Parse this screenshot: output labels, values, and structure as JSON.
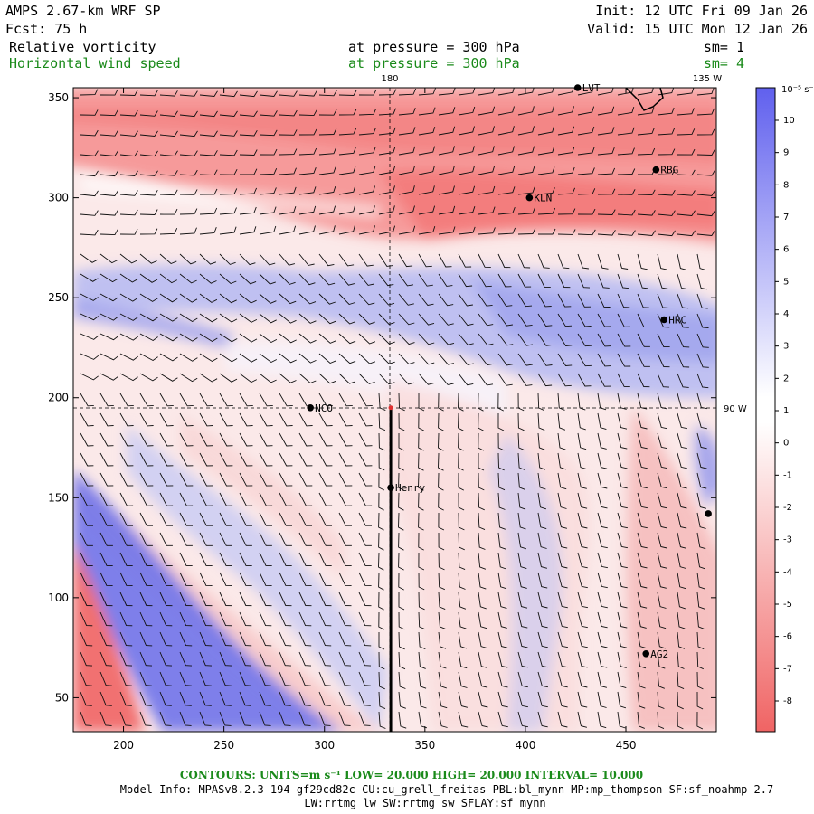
{
  "header": {
    "model": "AMPS 2.67-km WRF SP",
    "fcst": "Fcst:   75 h",
    "init": "Init: 12 UTC Fri 09 Jan 26",
    "valid": "Valid: 15 UTC Mon 12 Jan 26",
    "field1": "Relative vorticity",
    "field1_level": "at pressure =  300 hPa",
    "field1_sm": "sm= 1",
    "field2": "Horizontal wind speed",
    "field2_level": "at pressure =  300 hPa",
    "field2_sm": "sm= 4"
  },
  "map_labels": {
    "lon_180": "180",
    "lon_135w": "135 W",
    "lon_90w": "90 W"
  },
  "colorbar": {
    "unit": "10⁻⁵ s⁻¹",
    "ticks": [
      "10",
      "9",
      "8",
      "7",
      "6",
      "5",
      "4",
      "3",
      "2",
      "1",
      "0",
      "-1",
      "-2",
      "-3",
      "-4",
      "-5",
      "-6",
      "-7",
      "-8"
    ],
    "colors": {
      "max_blue": "#6e6ef0",
      "mid_white": "#ffffff",
      "min_red": "#f07070"
    }
  },
  "stations": [
    {
      "name": "LVT",
      "x": 426,
      "y": 355
    },
    {
      "name": "RBG",
      "x": 465,
      "y": 314
    },
    {
      "name": "KLN",
      "x": 402,
      "y": 300
    },
    {
      "name": "HRC",
      "x": 469,
      "y": 239
    },
    {
      "name": "NCO",
      "x": 293,
      "y": 195
    },
    {
      "name": "Henry",
      "x": 333,
      "y": 155
    },
    {
      "name": "AG2",
      "x": 460,
      "y": 72
    },
    {
      "name": "",
      "x": 491,
      "y": 142
    }
  ],
  "footer": {
    "contours": "CONTOURS:  UNITS=m s⁻¹  LOW=  20.000      HIGH=  20.000      INTERVAL=   10.000",
    "model_info": "Model Info: MPASv8.2.3-194-gf29cd82c CU:cu_grell_freitas PBL:bl_mynn MP:mp_thompson SF:sf_noahmp 2.7",
    "model_info2": "LW:rrtmg_lw SW:rrtmg_sw SFLAY:sf_mynn"
  },
  "chart_data": {
    "type": "heatmap",
    "title": "Relative vorticity at pressure = 300 hPa; Horizontal wind speed at pressure = 300 hPa",
    "xlim": [
      175,
      495
    ],
    "ylim": [
      33,
      355
    ],
    "xticks": [
      200,
      250,
      300,
      350,
      400,
      450
    ],
    "yticks": [
      50,
      100,
      150,
      200,
      250,
      300,
      350
    ],
    "xlabel": "",
    "ylabel": "",
    "series": [
      {
        "name": "Relative vorticity",
        "units": "10^-5 s^-1",
        "range": [
          -9,
          11
        ]
      },
      {
        "name": "Horizontal wind speed",
        "units": "m s^-1",
        "display": "wind barbs"
      }
    ],
    "cross_section_line": {
      "x": [
        333,
        333
      ],
      "y": [
        33,
        195
      ]
    },
    "crosshair": {
      "x": 333,
      "y": 195
    }
  }
}
